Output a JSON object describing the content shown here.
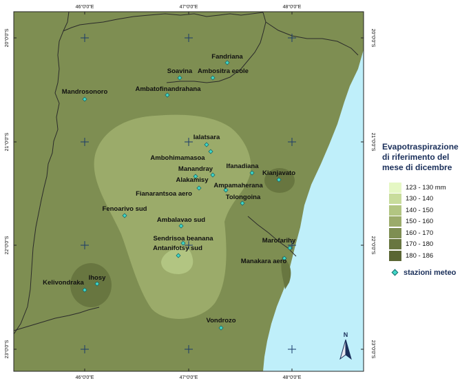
{
  "legend": {
    "title_lines": [
      "Evapotraspirazione",
      "di riferimento del",
      "mese di dicembre"
    ],
    "classes": [
      {
        "label": "123 - 130 mm",
        "color": "#e5f7c4"
      },
      {
        "label": "130 - 140",
        "color": "#c8dc9c"
      },
      {
        "label": "140 - 150",
        "color": "#b2c582"
      },
      {
        "label": "150 - 160",
        "color": "#9bab6a"
      },
      {
        "label": "160 - 170",
        "color": "#7e8e52"
      },
      {
        "label": "170 - 180",
        "color": "#687640"
      },
      {
        "label": "180 - 186",
        "color": "#5a6634"
      }
    ],
    "station_label": "stazioni meteo"
  },
  "colors": {
    "sea": "#bfeffa",
    "station_fill": "#40d8c8",
    "cross": "#1a3a6a"
  },
  "axes": {
    "top_labels": [
      "46°0'0\"E",
      "47°0'0\"E",
      "48°0'0\"E"
    ],
    "bottom_labels": [
      "46°0'0\"E",
      "47°0'0\"E",
      "48°0'0\"E"
    ],
    "left_labels": [
      "20°0'0\"S",
      "21°0'0\"S",
      "22°0'0\"S",
      "23°0'0\"S"
    ],
    "right_labels": [
      "20°0'0\"S",
      "21°0'0\"S",
      "22°0'0\"S",
      "23°0'0\"S"
    ]
  },
  "north_arrow": {
    "label": "N"
  },
  "stations": [
    {
      "name": "Fandriana"
    },
    {
      "name": "Soavina"
    },
    {
      "name": "Ambositra ecole"
    },
    {
      "name": "Ambatofinandrahana"
    },
    {
      "name": "Mandrosonoro"
    },
    {
      "name": "Ialatsara"
    },
    {
      "name": "Ambohimamasoa"
    },
    {
      "name": "Ifanadiana"
    },
    {
      "name": "Kianjavato"
    },
    {
      "name": "Manandray"
    },
    {
      "name": "Alakamisy"
    },
    {
      "name": "Ampamaherana"
    },
    {
      "name": "Fianarantsoa aero"
    },
    {
      "name": "Tolongoina"
    },
    {
      "name": "Fenoarivo sud"
    },
    {
      "name": "Ambalavao sud"
    },
    {
      "name": "Sendrisoa beanana"
    },
    {
      "name": "Antanifotsy sud"
    },
    {
      "name": "Marofarihy"
    },
    {
      "name": "Manakara aero"
    },
    {
      "name": "Ihosy"
    },
    {
      "name": "Kelivondraka"
    },
    {
      "name": "Vondrozo"
    }
  ]
}
